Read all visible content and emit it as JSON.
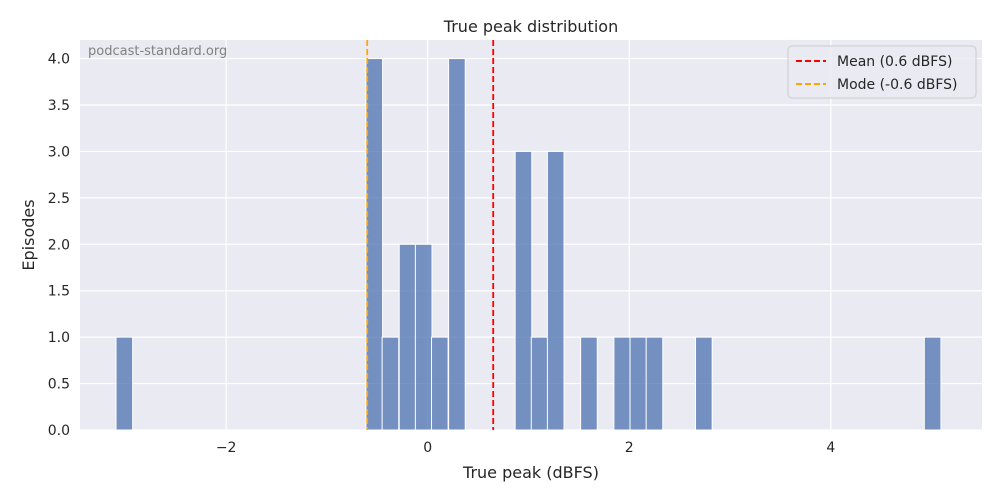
{
  "chart_data": {
    "type": "bar",
    "title": "True peak distribution",
    "xlabel": "True peak (dBFS)",
    "ylabel": "Episodes",
    "watermark": "podcast-standard.org",
    "xlim": [
      -3.45,
      5.5
    ],
    "ylim": [
      0,
      4.2
    ],
    "bin_width": 0.165,
    "bins": [
      {
        "x": -3.01,
        "count": 1
      },
      {
        "x": -0.53,
        "count": 4
      },
      {
        "x": -0.37,
        "count": 1
      },
      {
        "x": -0.2,
        "count": 2
      },
      {
        "x": -0.04,
        "count": 2
      },
      {
        "x": 0.12,
        "count": 1
      },
      {
        "x": 0.29,
        "count": 4
      },
      {
        "x": 0.95,
        "count": 3
      },
      {
        "x": 1.11,
        "count": 1
      },
      {
        "x": 1.27,
        "count": 3
      },
      {
        "x": 1.6,
        "count": 1
      },
      {
        "x": 1.93,
        "count": 1
      },
      {
        "x": 2.09,
        "count": 1
      },
      {
        "x": 2.25,
        "count": 1
      },
      {
        "x": 2.74,
        "count": 1
      },
      {
        "x": 5.01,
        "count": 1
      }
    ],
    "bar_color": "#4c72b0",
    "reference_lines": [
      {
        "label": "Mean (0.6 dBFS)",
        "x": 0.65,
        "color": "#ff0000"
      },
      {
        "label": "Mode (-0.6 dBFS)",
        "x": -0.6,
        "color": "#ffa500"
      }
    ],
    "x_ticks": [
      {
        "value": -2,
        "label": "−2"
      },
      {
        "value": 0,
        "label": "0"
      },
      {
        "value": 2,
        "label": "2"
      },
      {
        "value": 4,
        "label": "4"
      }
    ],
    "y_ticks": [
      {
        "value": 0,
        "label": "0.0"
      },
      {
        "value": 0.5,
        "label": "0.5"
      },
      {
        "value": 1,
        "label": "1.0"
      },
      {
        "value": 1.5,
        "label": "1.5"
      },
      {
        "value": 2,
        "label": "2.0"
      },
      {
        "value": 2.5,
        "label": "2.5"
      },
      {
        "value": 3,
        "label": "3.0"
      },
      {
        "value": 3.5,
        "label": "3.5"
      },
      {
        "value": 4,
        "label": "4.0"
      }
    ],
    "grid": true,
    "legend_position": "top-right",
    "plot_background": "#eaeaf2"
  }
}
